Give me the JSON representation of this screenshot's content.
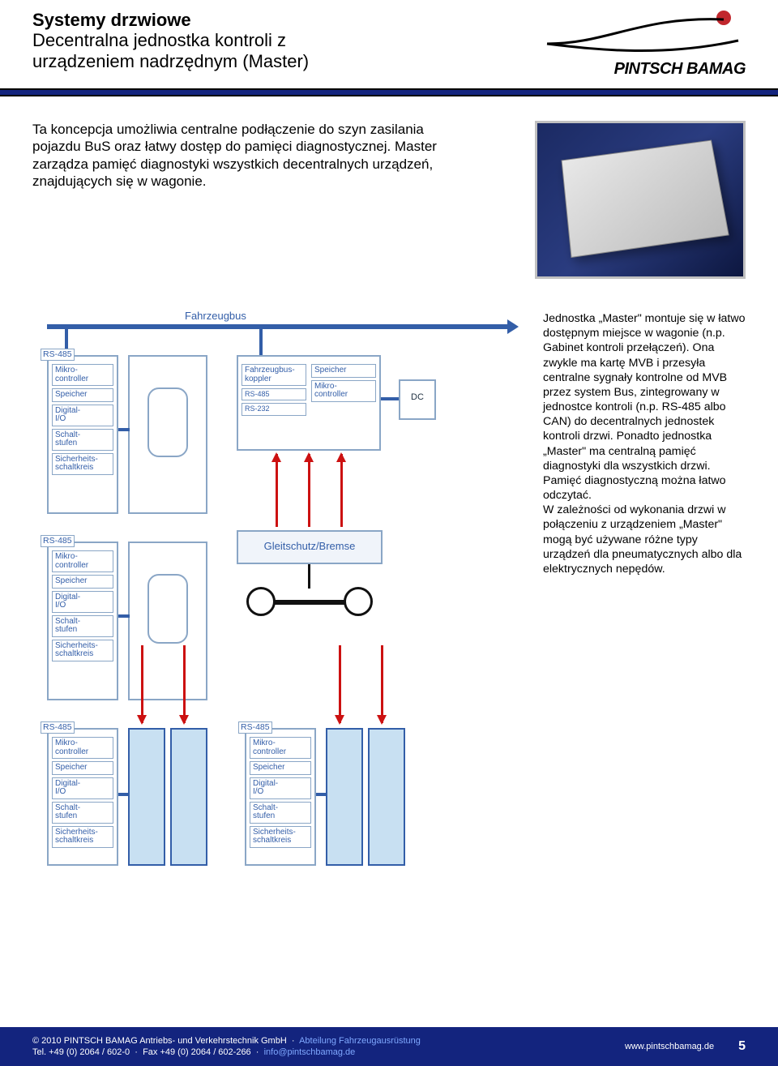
{
  "header": {
    "title_line1": "Systemy drzwiowe",
    "title_line2": "Decentralna jednostka kontroli z",
    "title_line3": "urządzeniem nadrzędnym (Master)",
    "brand": "PINTSCH BAMAG",
    "brand_colors": {
      "dot": "#c1272d",
      "text": "#000000"
    },
    "divider_color": "#13247e"
  },
  "intro": "Ta koncepcja umożliwia centralne podłączenie do szyn zasilania pojazdu BuS oraz łatwy dostęp do pamięci diagnostycznej. Master zarządza pamięć diagnostyki wszystkich decentralnych urządzeń, znajdujących się w wagonie.",
  "diagram": {
    "top_bus_label": "Fahrzeugbus",
    "bus_color": "#335ea8",
    "module_border": "#8aa6c6",
    "module_labels": {
      "rs485": "RS-485",
      "mikro": "Mikro-\ncontroller",
      "speicher": "Speicher",
      "digital": "Digital-\nI/O",
      "schalt": "Schalt-\nstufen",
      "sicher": "Sicherheits-\nschaltkreis",
      "rs232": "RS-232",
      "fzkoppler": "Fahrzeugbus-\nkoppler",
      "dc": "DC"
    },
    "gleitschutz_label": "Gleitschutz/Bremse",
    "door_fill": "#c8e0f2",
    "wheel_color": "#111111",
    "red_arrow_color": "#cc1111"
  },
  "sidetext": "Jednostka „Master\" montuje się w łatwo dostępnym miejsce w wagonie (n.p. Gabinet kontroli przełączeń). Ona zwykle ma kartę MVB i przesyła centralne sygnały kontrolne od MVB przez system Bus, zintegrowany w jednostce kontroli (n.p. RS-485 albo CAN) do decentralnych jednostek kontroli drzwi. Ponadto jednostka „Master\" ma centralną pamięć diagnostyki dla wszystkich drzwi. Pamięć diagnostyczną można łatwo odczytać.\nW zależności od wykonania drzwi w połączeniu z urządzeniem „Master\" mogą być używane różne typy urządzeń dla pneumatycznych albo dla elektrycznych nepędów.",
  "footer": {
    "copyright": "© 2010 PINTSCH BAMAG Antriebs- und Verkehrstechnik GmbH",
    "dept": "Abteilung Fahrzeugausrüstung",
    "tel": "Tel. +49 (0) 2064 / 602-0",
    "fax": "Fax +49 (0) 2064 / 602-266",
    "email": "info@pintschbamag.de",
    "url": "www.pintschbamag.de",
    "page": "5",
    "bg": "#13247e"
  }
}
